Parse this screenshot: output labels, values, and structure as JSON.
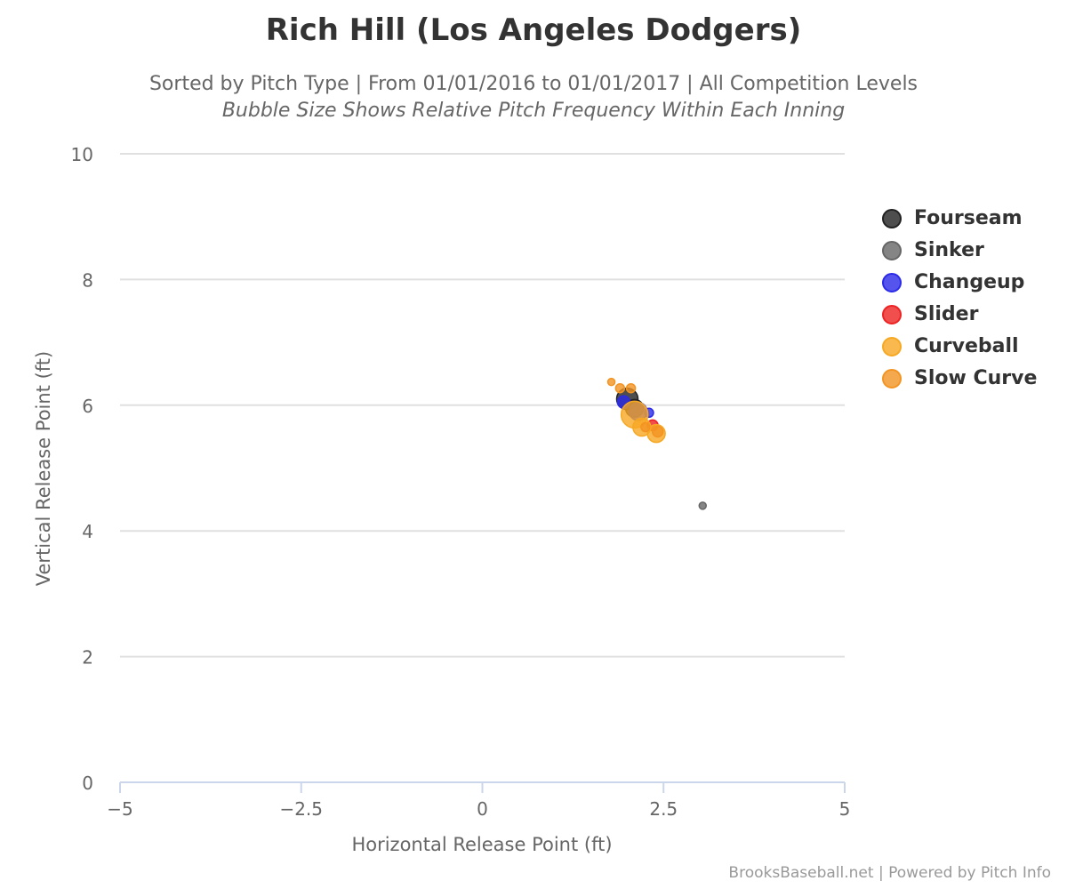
{
  "chart_data": {
    "type": "scatter",
    "title": "Rich Hill (Los Angeles Dodgers)",
    "subtitle": "Sorted by Pitch Type | From 01/01/2016 to 01/01/2017 | All Competition Levels",
    "subtitle2": "Bubble Size Shows Relative Pitch Frequency Within Each Inning",
    "xlabel": "Horizontal Release Point (ft)",
    "ylabel": "Vertical Release Point (ft)",
    "xlim": [
      -5,
      5
    ],
    "ylim": [
      0,
      10
    ],
    "xticks": [
      "-5",
      "-2.5",
      "0",
      "2.5",
      "5"
    ],
    "yticks": [
      "0",
      "2",
      "4",
      "6",
      "8",
      "10"
    ],
    "legend_position": "right",
    "series": [
      {
        "name": "Fourseam",
        "color": "#222222",
        "points": [
          [
            2.0,
            6.1,
            12
          ],
          [
            2.1,
            5.95,
            10
          ]
        ]
      },
      {
        "name": "Sinker",
        "color": "#666666",
        "points": [
          [
            3.04,
            4.4,
            4
          ]
        ]
      },
      {
        "name": "Changeup",
        "color": "#2a2ae8",
        "points": [
          [
            1.95,
            6.05,
            7
          ],
          [
            2.15,
            5.9,
            10
          ],
          [
            2.3,
            5.88,
            5
          ]
        ]
      },
      {
        "name": "Slider",
        "color": "#ee2222",
        "points": [
          [
            2.35,
            5.68,
            6
          ]
        ]
      },
      {
        "name": "Curveball",
        "color": "#f7a823",
        "points": [
          [
            2.1,
            5.85,
            15
          ],
          [
            2.2,
            5.65,
            10
          ],
          [
            2.4,
            5.55,
            10
          ]
        ]
      },
      {
        "name": "Slow Curve",
        "color": "#f39422",
        "points": [
          [
            1.78,
            6.37,
            4
          ],
          [
            1.9,
            6.27,
            5
          ],
          [
            2.05,
            6.27,
            5
          ],
          [
            2.25,
            5.65,
            5
          ],
          [
            2.42,
            5.58,
            6
          ]
        ]
      }
    ]
  },
  "credit": "BrooksBaseball.net | Powered by Pitch Info"
}
